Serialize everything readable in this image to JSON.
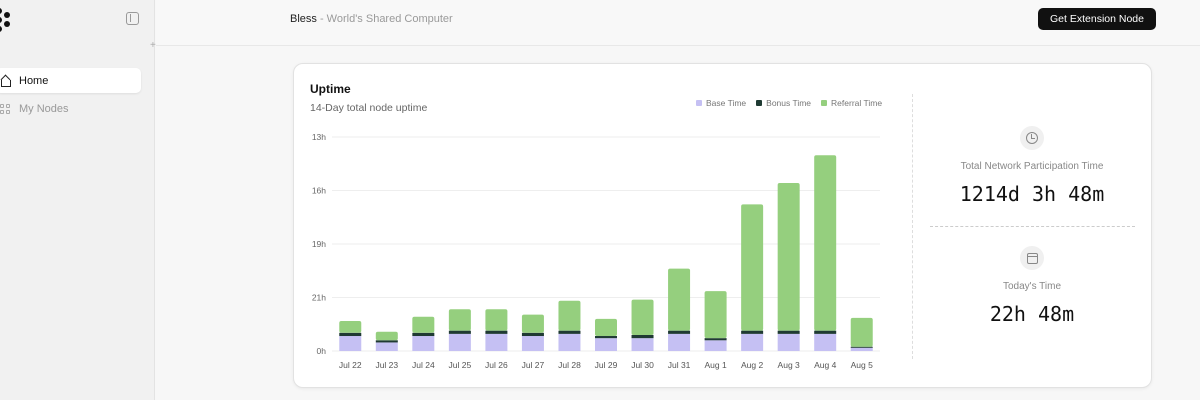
{
  "sidebar": {
    "items": [
      {
        "label": "Home",
        "icon": "house-icon",
        "active": true
      },
      {
        "label": "My Nodes",
        "icon": "nodes-icon",
        "active": false
      }
    ]
  },
  "header": {
    "brand": "Bless",
    "tagline": " - World's Shared Computer",
    "cta_label": "Get Extension Node"
  },
  "card": {
    "title": "Uptime",
    "subtitle": "14-Day total node uptime"
  },
  "stats": {
    "total_label": "Total Network Participation Time",
    "total_value": "1214d 3h 48m",
    "today_label": "Today's Time",
    "today_value": "22h 48m"
  },
  "colors": {
    "base": "#c5c0f3",
    "bonus": "#1f3a33",
    "referral": "#95cf7e"
  },
  "chart_data": {
    "type": "bar",
    "stacked": true,
    "categories": [
      "Jul 22",
      "Jul 23",
      "Jul 24",
      "Jul 25",
      "Jul 26",
      "Jul 27",
      "Jul 28",
      "Jul 29",
      "Jul 30",
      "Jul 31",
      "Aug 1",
      "Aug 2",
      "Aug 3",
      "Aug 4",
      "Aug 5"
    ],
    "y_tick_labels": [
      "13h",
      "16h",
      "19h",
      "21h",
      "0h"
    ],
    "legend": [
      "Base Time",
      "Bonus Time",
      "Referral Time"
    ],
    "y_max": 100,
    "series": [
      {
        "name": "Base Time",
        "values": [
          7,
          4,
          7,
          8,
          8,
          7,
          8,
          6,
          6,
          8,
          5,
          8,
          8,
          8,
          1.5
        ]
      },
      {
        "name": "Bonus Time",
        "values": [
          1.5,
          1,
          1.5,
          1.5,
          1.5,
          1.5,
          1.5,
          1,
          1.5,
          1.5,
          1,
          1.5,
          1.5,
          1.5,
          0.5
        ]
      },
      {
        "name": "Referral Time",
        "values": [
          5.5,
          4,
          7.5,
          10,
          10,
          8.5,
          14,
          8,
          16.5,
          29,
          22,
          59,
          69,
          82,
          13.5
        ]
      }
    ],
    "grid": true
  }
}
